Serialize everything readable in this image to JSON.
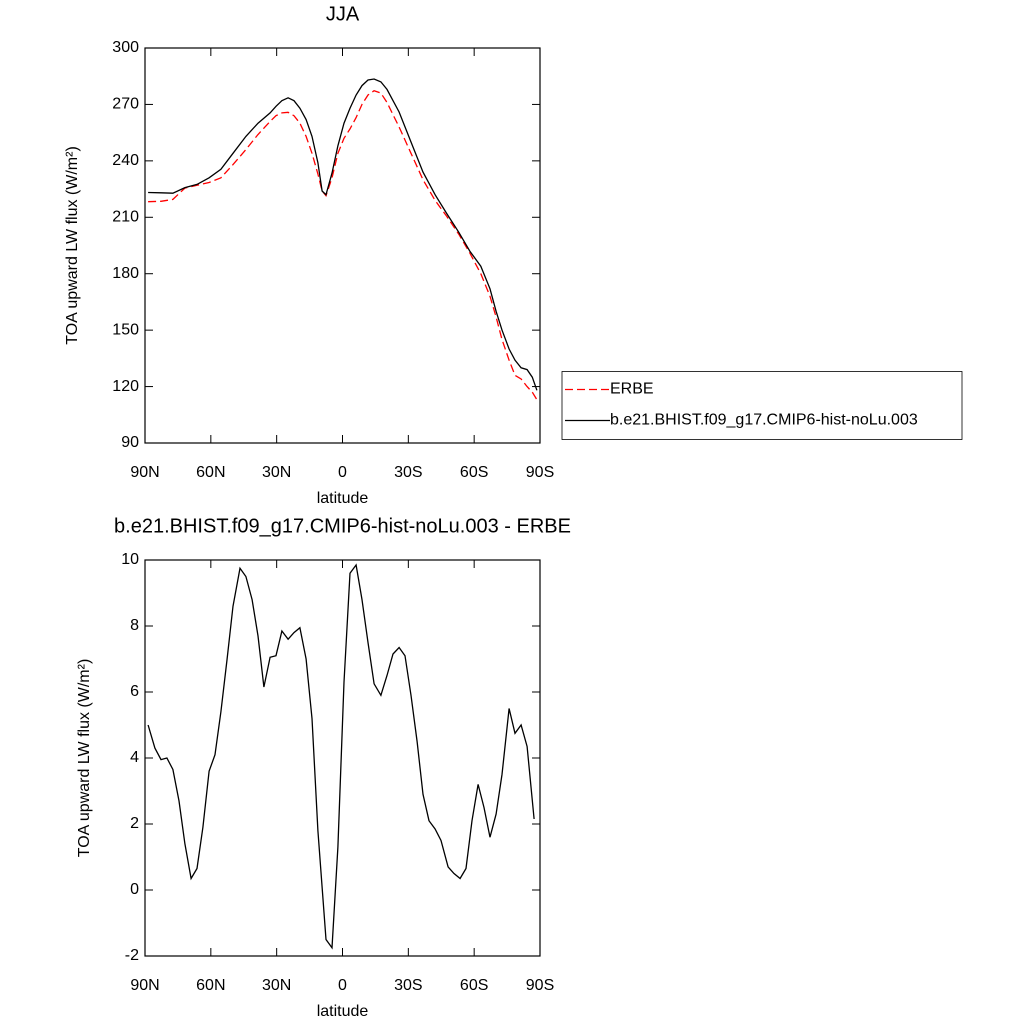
{
  "chart_data": [
    {
      "type": "line",
      "title": "JJA",
      "x_label": "latitude",
      "y_label": "TOA upward LW flux (W/m²)",
      "x": [
        88.6,
        82.7,
        77.3,
        71.8,
        66.3,
        60.8,
        55.4,
        49.9,
        44,
        38.5,
        33,
        30.3,
        27.6,
        24.8,
        22.1,
        19.4,
        16.6,
        13.9,
        11.2,
        9.3,
        7.5,
        4.8,
        2.1,
        -0.7,
        -3.4,
        -6.2,
        -8.9,
        -11.6,
        -14.4,
        -17.5,
        -20.3,
        -25.8,
        -31.2,
        -36.7,
        -42.2,
        -47.5,
        -53,
        -58,
        -63,
        -67.2,
        -70,
        -72.7,
        -75.9,
        -78.6,
        -81.4,
        -84.1,
        -86.5,
        -88.6
      ],
      "series": [
        {
          "name": "ERBE",
          "color": "#ff0000",
          "line_style": "dashed",
          "values": [
            218.3,
            218.5,
            219.5,
            225.5,
            227,
            228.5,
            231,
            238,
            246,
            254,
            261,
            264,
            265.5,
            265.8,
            264,
            260,
            253,
            244,
            233,
            224,
            221.5,
            231,
            244,
            252,
            257,
            263,
            270,
            275,
            277.3,
            276,
            271,
            258,
            244,
            230,
            219,
            210.5,
            201,
            191,
            180,
            168,
            157,
            145,
            134,
            126,
            124,
            120,
            117,
            113
          ]
        },
        {
          "name": "b.e21.BHIST.f09_g17.CMIP6-hist-noLu.003",
          "color": "#000000",
          "line_style": "solid",
          "values": [
            223.2,
            223,
            222.8,
            225.8,
            227.5,
            231,
            235.5,
            244,
            253,
            260,
            265.5,
            269,
            272,
            273.5,
            272,
            268,
            262,
            253,
            239,
            224,
            222,
            233.5,
            248,
            260,
            268,
            275,
            280,
            283,
            283.5,
            282,
            278,
            266,
            250,
            234,
            222,
            212,
            202,
            192,
            184,
            172,
            160,
            150,
            140,
            134,
            130,
            129,
            125,
            118
          ]
        }
      ],
      "xlim": [
        90,
        -90
      ],
      "xticks": [
        {
          "value": 90,
          "label": "90N"
        },
        {
          "value": 60,
          "label": "60N"
        },
        {
          "value": 30,
          "label": "30N"
        },
        0,
        {
          "value": -30,
          "label": "30S"
        },
        {
          "value": -60,
          "label": "60S"
        },
        {
          "value": -90,
          "label": "90S"
        }
      ],
      "ylim": [
        90,
        300
      ],
      "yticks": [
        90,
        120,
        150,
        180,
        210,
        240,
        270,
        300
      ],
      "legend_position": "right"
    },
    {
      "type": "line",
      "title": "b.e21.BHIST.f09_g17.CMIP6-hist-noLu.003 - ERBE",
      "x_label": "latitude",
      "y_label": "TOA upward LW flux (W/m²)",
      "x": [
        88.6,
        85.5,
        82.7,
        80,
        77.3,
        74.5,
        71.8,
        69,
        66.3,
        63.6,
        60.8,
        58.1,
        55.4,
        52.6,
        49.9,
        46.7,
        44,
        41.2,
        38.5,
        35.8,
        33,
        30.3,
        27.6,
        24.8,
        22.1,
        19.4,
        16.6,
        13.9,
        11.2,
        7.5,
        4.8,
        2.1,
        -0.7,
        -3.4,
        -6.2,
        -8.9,
        -11.6,
        -14.4,
        -17.5,
        -20.3,
        -23,
        -25.8,
        -28.5,
        -31.2,
        -34,
        -36.7,
        -39.4,
        -42.2,
        -44.9,
        -48.1,
        -50.8,
        -53.6,
        -56.3,
        -59,
        -61.8,
        -64.5,
        -67.2,
        -70,
        -72.7,
        -75.9,
        -78.6,
        -81.4,
        -84.1,
        -87.3
      ],
      "values": [
        5.0,
        4.3,
        3.95,
        4.0,
        3.65,
        2.7,
        1.4,
        0.35,
        0.65,
        1.9,
        3.6,
        4.1,
        5.4,
        7.0,
        8.6,
        9.75,
        9.5,
        8.8,
        7.7,
        6.15,
        7.05,
        7.1,
        7.85,
        7.6,
        7.8,
        7.95,
        7.0,
        5.2,
        1.8,
        -1.5,
        -1.75,
        1.3,
        6.3,
        9.6,
        9.85,
        8.8,
        7.5,
        6.25,
        5.9,
        6.5,
        7.15,
        7.35,
        7.1,
        5.9,
        4.5,
        2.9,
        2.1,
        1.85,
        1.5,
        0.7,
        0.5,
        0.35,
        0.65,
        2.1,
        3.2,
        2.5,
        1.6,
        2.3,
        3.5,
        5.5,
        4.75,
        5.0,
        4.35,
        2.15
      ],
      "color": "#000000",
      "xlim": [
        90,
        -90
      ],
      "xticks": [
        {
          "value": 90,
          "label": "90N"
        },
        {
          "value": 60,
          "label": "60N"
        },
        {
          "value": 30,
          "label": "30N"
        },
        0,
        {
          "value": -30,
          "label": "30S"
        },
        {
          "value": -60,
          "label": "60S"
        },
        {
          "value": -90,
          "label": "90S"
        }
      ],
      "ylim": [
        -2,
        10
      ],
      "yticks": [
        -2,
        0,
        2,
        4,
        6,
        8,
        10
      ]
    }
  ]
}
